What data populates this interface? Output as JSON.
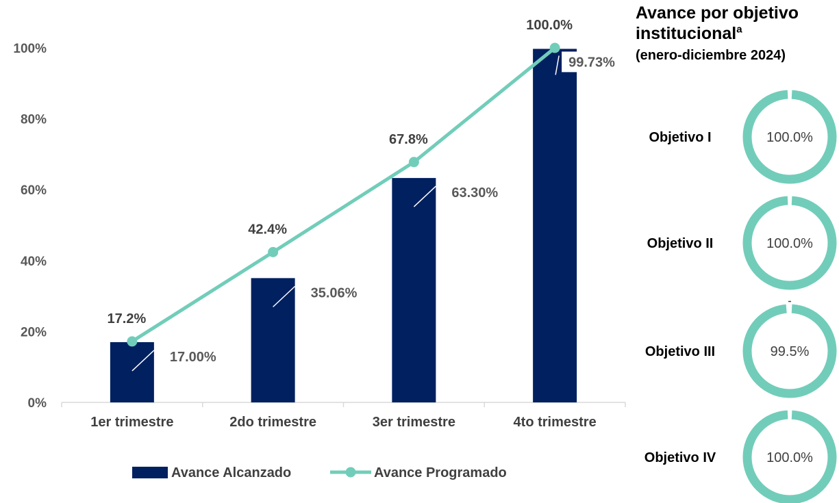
{
  "chart_data": [
    {
      "type": "bar",
      "categories": [
        "1er trimestre",
        "2do trimestre",
        "3er trimestre",
        "4to trimestre"
      ],
      "series": [
        {
          "name": "Avance Alcanzado",
          "kind": "bar",
          "color": "#002060",
          "values": [
            17.0,
            35.06,
            63.3,
            99.73
          ],
          "labels": [
            "17.00%",
            "35.06%",
            "63.30%",
            "99.73%"
          ]
        },
        {
          "name": "Avance Programado",
          "kind": "line",
          "color": "#71CDB9",
          "values": [
            17.2,
            42.4,
            67.8,
            100.0
          ],
          "labels": [
            "17.2%",
            "42.4%",
            "67.8%",
            "100.0%"
          ]
        }
      ],
      "ylim": [
        0,
        100
      ],
      "yticks": [
        "0%",
        "20%",
        "40%",
        "60%",
        "80%",
        "100%"
      ],
      "ytick_values": [
        0,
        20,
        40,
        60,
        80,
        100
      ],
      "grid": false,
      "legend": "bottom"
    },
    {
      "type": "pie",
      "title_line1": "Avance por objetivo",
      "title_line2": "institucional",
      "title_sup": "a",
      "title_line3": "(enero-diciembre 2024)",
      "color": "#71CDB9",
      "items": [
        {
          "label": "Objetivo I",
          "value": 100.0,
          "text": "100.0%"
        },
        {
          "label": "Objetivo II",
          "value": 100.0,
          "text": "100.0%"
        },
        {
          "label": "Objetivo III",
          "value": 99.5,
          "text": "99.5%"
        },
        {
          "label": "Objetivo IV",
          "value": 100.0,
          "text": "100.0%"
        }
      ]
    }
  ]
}
